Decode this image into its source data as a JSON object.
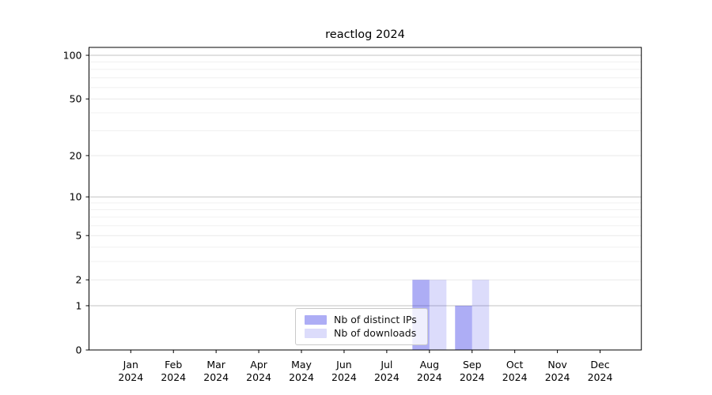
{
  "chart_data": {
    "type": "bar",
    "title": "reactlog 2024",
    "x": {
      "months": [
        "Jan",
        "Feb",
        "Mar",
        "Apr",
        "May",
        "Jun",
        "Jul",
        "Aug",
        "Sep",
        "Oct",
        "Nov",
        "Dec"
      ],
      "year": "2024"
    },
    "categories": [
      "Jan 2024",
      "Feb 2024",
      "Mar 2024",
      "Apr 2024",
      "May 2024",
      "Jun 2024",
      "Jul 2024",
      "Aug 2024",
      "Sep 2024",
      "Oct 2024",
      "Nov 2024",
      "Dec 2024"
    ],
    "series": [
      {
        "name": "Nb of distinct IPs",
        "color": "rgba(40,40,230,0.38)",
        "color_hex_on_white": "#adadf5",
        "values": [
          0,
          0,
          0,
          0,
          0,
          0,
          0,
          2,
          1,
          0,
          0,
          0
        ]
      },
      {
        "name": "Nb of downloads",
        "color": "rgba(40,40,230,0.16)",
        "color_hex_on_white": "#dcdcfb",
        "values": [
          0,
          0,
          0,
          0,
          0,
          0,
          0,
          2,
          2,
          0,
          0,
          0
        ]
      }
    ],
    "y_axis": {
      "scale": "log1p",
      "tick_values": [
        0,
        1,
        2,
        5,
        10,
        20,
        50,
        100
      ],
      "tick_labels": [
        "0",
        "1",
        "2",
        "5",
        "10",
        "20",
        "50",
        "100"
      ],
      "minor_gridline_values": [
        3,
        4,
        6,
        7,
        8,
        9,
        30,
        40,
        60,
        70,
        80,
        90
      ],
      "range": [
        0,
        115
      ]
    },
    "grid": true,
    "legend": {
      "position": "lower center",
      "entries": [
        "Nb of distinct IPs",
        "Nb of downloads"
      ]
    }
  },
  "style_colors": {
    "gridline_decade": "#c3c3c3",
    "gridline_major": "#e9e9e9",
    "gridline_minor": "#f0f0f0",
    "spine": "#000000",
    "text": "#000000"
  }
}
